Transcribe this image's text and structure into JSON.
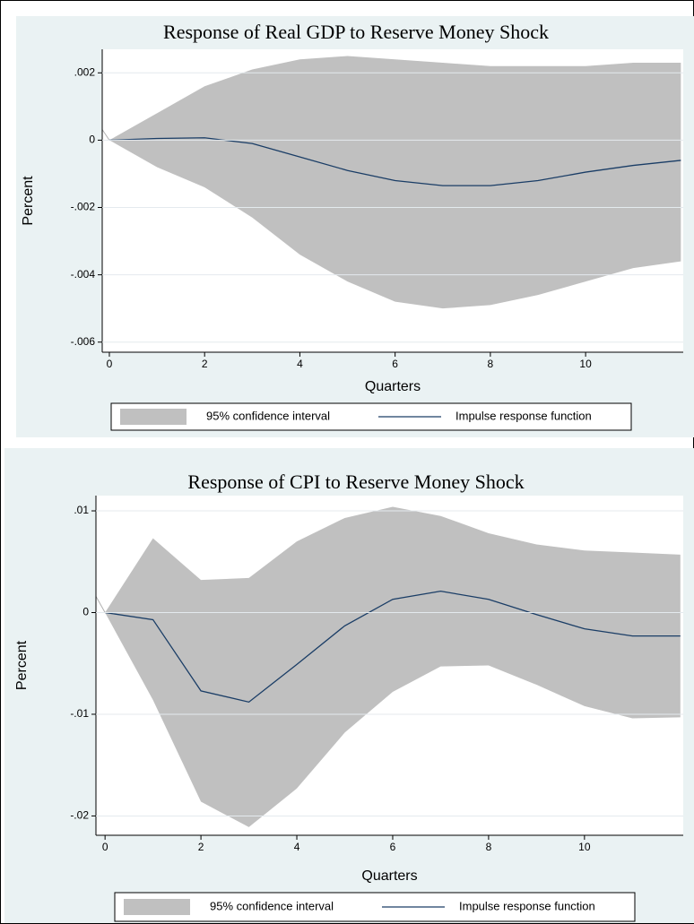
{
  "chart_data": [
    {
      "type": "line",
      "title": "Response of Real GDP to Reserve Money Shock",
      "xlabel": "Quarters",
      "ylabel": "Percent",
      "x": [
        0,
        1,
        2,
        3,
        4,
        5,
        6,
        7,
        8,
        9,
        10,
        11,
        12
      ],
      "series": [
        {
          "name": "95% confidence interval",
          "color": "#c0c0c0",
          "upper": [
            0,
            0.0008,
            0.0016,
            0.0021,
            0.0024,
            0.0025,
            0.0024,
            0.0023,
            0.0022,
            0.0022,
            0.0022,
            0.0023,
            0.0023
          ],
          "lower": [
            0,
            -0.0008,
            -0.0014,
            -0.0023,
            -0.0034,
            -0.0042,
            -0.0048,
            -0.005,
            -0.0049,
            -0.0046,
            -0.0042,
            -0.0038,
            -0.0036
          ]
        },
        {
          "name": "Impulse response function",
          "color": "#1a3d66",
          "values": [
            0,
            5e-05,
            7e-05,
            -0.0001,
            -0.0005,
            -0.0009,
            -0.0012,
            -0.00135,
            -0.00135,
            -0.0012,
            -0.00095,
            -0.00075,
            -0.0006
          ]
        }
      ],
      "xlim": [
        -0.15,
        12.05
      ],
      "xticks": [
        0,
        2,
        4,
        6,
        8,
        10
      ],
      "ylim": [
        -0.0063,
        0.0027
      ],
      "yticks": [
        {
          "value": 0.002,
          "label": ".002"
        },
        0,
        {
          "value": -0.002,
          "label": "-.002"
        },
        {
          "value": -0.004,
          "label": "-.004"
        },
        {
          "value": -0.006,
          "label": "-.006"
        }
      ]
    },
    {
      "type": "line",
      "title": "Response of CPI to Reserve Money Shock",
      "xlabel": "Quarters",
      "ylabel": "Percent",
      "x": [
        0,
        1,
        2,
        3,
        4,
        5,
        6,
        7,
        8,
        9,
        10,
        11,
        12
      ],
      "series": [
        {
          "name": "95% confidence interval",
          "color": "#c0c0c0",
          "upper": [
            0,
            0.0073,
            0.0032,
            0.0034,
            0.007,
            0.0093,
            0.0104,
            0.0095,
            0.0078,
            0.0067,
            0.0061,
            0.0059,
            0.0057
          ],
          "lower": [
            0,
            -0.0086,
            -0.0186,
            -0.0211,
            -0.0173,
            -0.0118,
            -0.0078,
            -0.0053,
            -0.0052,
            -0.0071,
            -0.0092,
            -0.0104,
            -0.0103
          ]
        },
        {
          "name": "Impulse response function",
          "color": "#1a3d66",
          "values": [
            0,
            -0.0007,
            -0.0077,
            -0.0088,
            -0.0051,
            -0.0013,
            0.0013,
            0.0021,
            0.0013,
            -0.0002,
            -0.0016,
            -0.0023,
            -0.0023
          ]
        }
      ],
      "xlim": [
        -0.19,
        12.06
      ],
      "xticks": [
        0,
        2,
        4,
        6,
        8,
        10
      ],
      "ylim": [
        -0.0219,
        0.0115
      ],
      "yticks": [
        {
          "value": 0.01,
          "label": ".01"
        },
        0,
        {
          "value": -0.01,
          "label": "-.01"
        },
        {
          "value": -0.02,
          "label": "-.02"
        }
      ]
    }
  ]
}
